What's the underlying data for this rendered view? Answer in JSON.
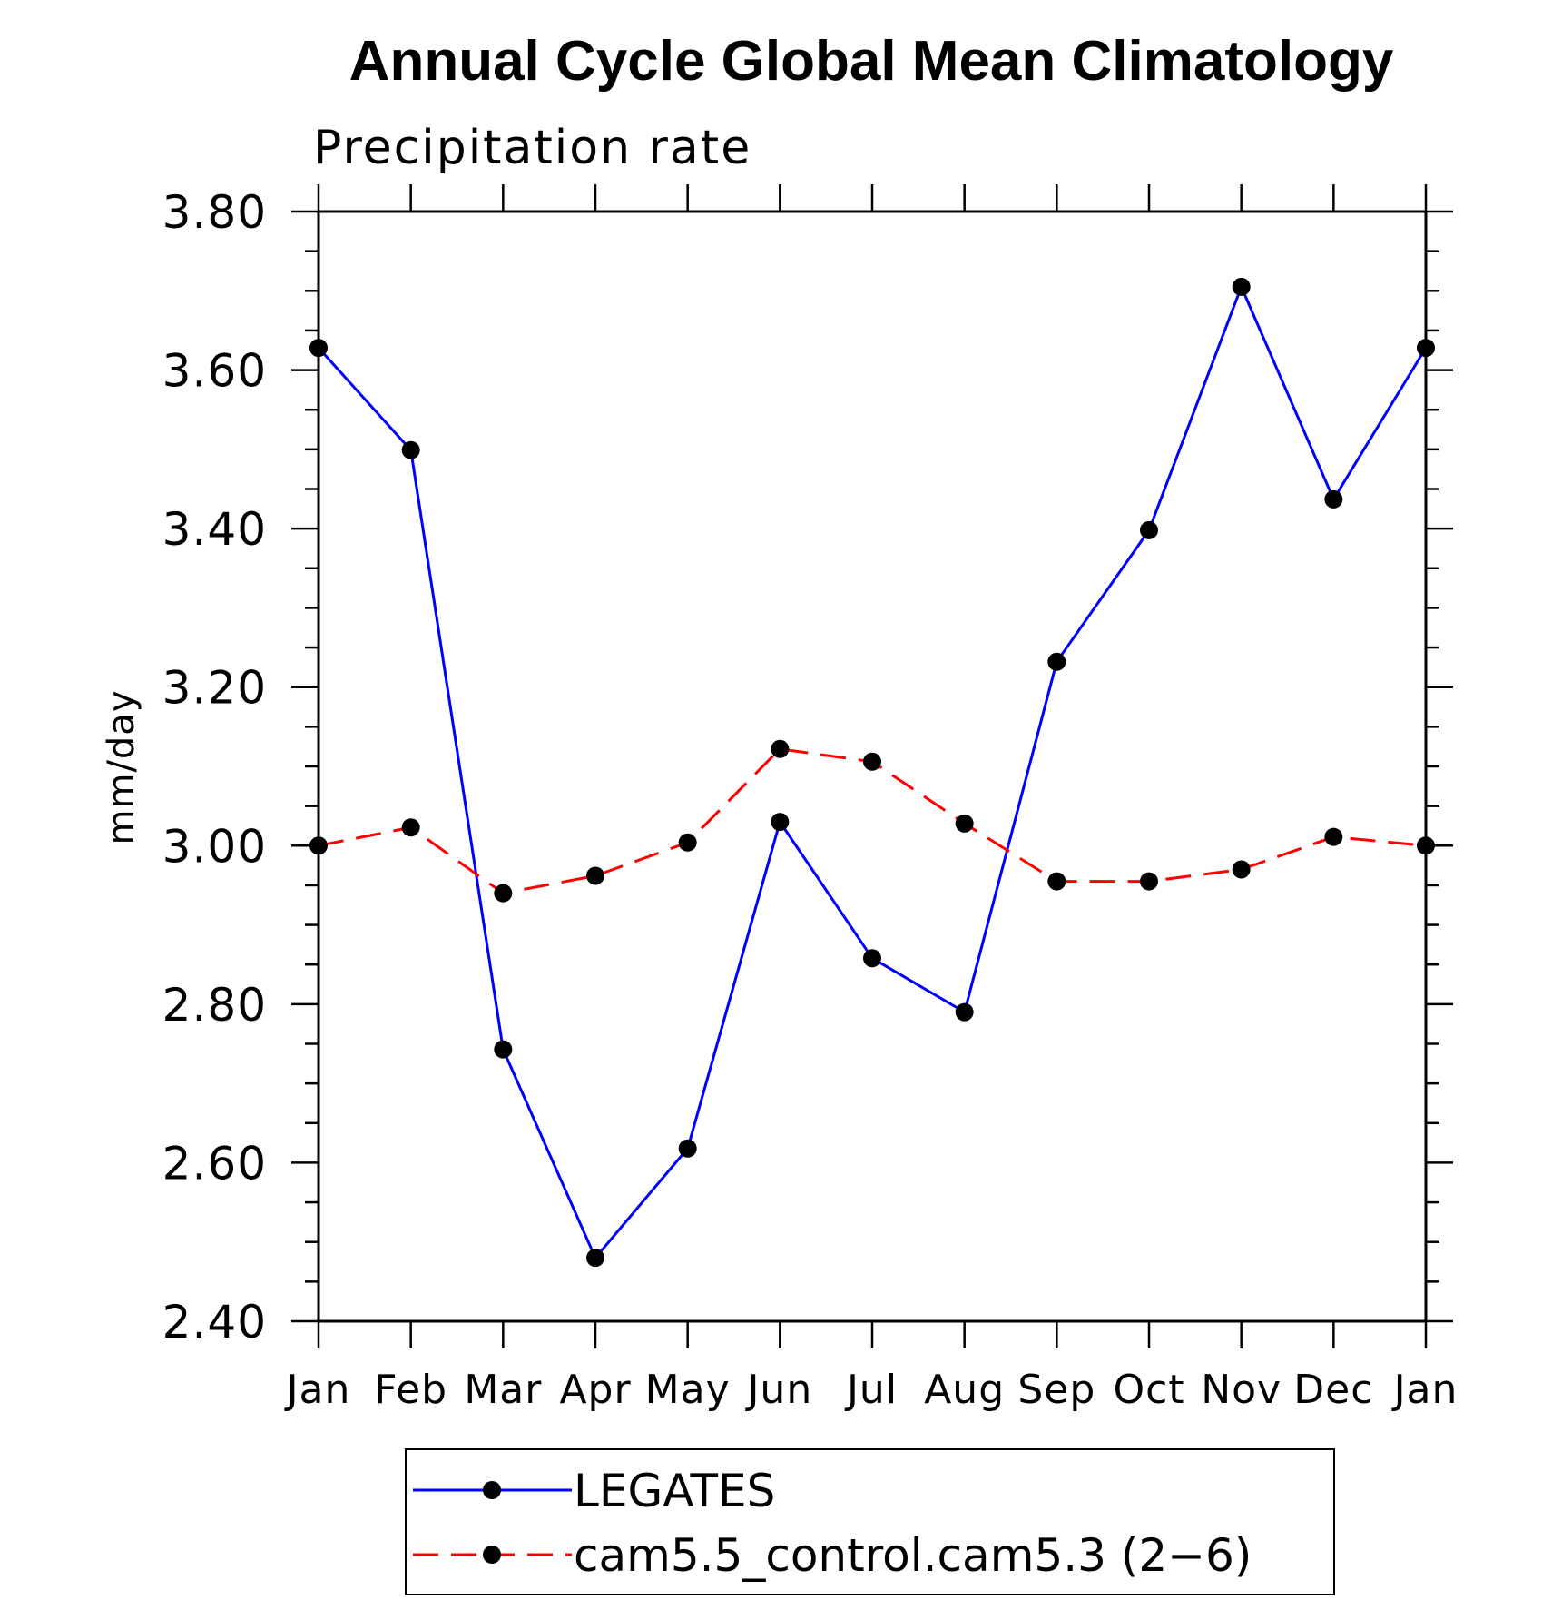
{
  "chart_data": {
    "type": "line",
    "title": "Annual Cycle Global Mean Climatology",
    "subtitle": "Precipitation rate",
    "xlabel": "",
    "ylabel": "mm/day",
    "ylim": [
      2.4,
      3.8
    ],
    "yticks": [
      "2.40",
      "2.60",
      "2.80",
      "3.00",
      "3.20",
      "3.40",
      "3.60",
      "3.80"
    ],
    "categories": [
      "Jan",
      "Feb",
      "Mar",
      "Apr",
      "May",
      "Jun",
      "Jul",
      "Aug",
      "Sep",
      "Oct",
      "Nov",
      "Dec",
      "Jan"
    ],
    "grid": false,
    "legend_position": "bottom",
    "series": [
      {
        "name": "LEGATES",
        "color": "#0000ff",
        "dashed": false,
        "marker": "filled-circle",
        "values": [
          3.628,
          3.499,
          2.743,
          2.48,
          2.618,
          3.03,
          2.858,
          2.79,
          3.232,
          3.398,
          3.705,
          3.437,
          3.628
        ]
      },
      {
        "name": "cam5.5_control.cam5.3 (2−6)",
        "color": "#ff0000",
        "dashed": true,
        "marker": "filled-circle",
        "values": [
          3.0,
          3.023,
          2.94,
          2.962,
          3.004,
          3.122,
          3.106,
          3.028,
          2.955,
          2.955,
          2.97,
          3.011,
          3.0
        ]
      }
    ]
  }
}
